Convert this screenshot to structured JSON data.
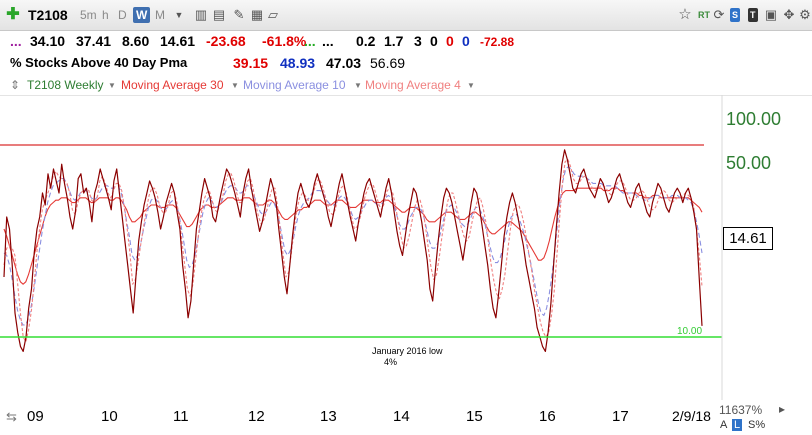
{
  "toolbar": {
    "symbol": "T2108",
    "timeframes": [
      "5m",
      "h",
      "D",
      "W",
      "M"
    ],
    "active_timeframe": "W",
    "right_badges": [
      "RT",
      "S",
      "T"
    ]
  },
  "stats_row": {
    "dots1": "...",
    "v1": "34.10",
    "v2": "37.41",
    "v3": "8.60",
    "v4": "14.61",
    "change": "-23.68",
    "change_pct": "-61.8%",
    "dots2": "...",
    "dots3": "...",
    "v5": "0.2",
    "v6": "1.7",
    "v7": "3",
    "v8": "0",
    "v9": "0",
    "v10": "0",
    "v11": "-72.88"
  },
  "indicator_row": {
    "name": "% Stocks Above 40 Day Pma",
    "ma_a": "39.15",
    "ma_b": "48.93",
    "ma_c": "47.03",
    "ma_d": "56.69"
  },
  "legend": {
    "series_main": "T2108 Weekly",
    "series_ma30": "Moving Average 30",
    "series_ma10": "Moving Average 10",
    "series_ma4": "Moving Average 4",
    "colors": {
      "main": "#2e7d32",
      "ma30": "#e53935",
      "ma10": "#8a8fe0",
      "ma4": "#f08080"
    }
  },
  "chart_data": {
    "type": "line",
    "title": "% Stocks Above 40 Day Pma",
    "x_ticks": [
      "09",
      "10",
      "11",
      "12",
      "13",
      "14",
      "15",
      "16",
      "17",
      "2/9/18"
    ],
    "y_ticks": [
      "100.00",
      "50.00"
    ],
    "ylim": [
      0,
      110
    ],
    "last_value": "14.61",
    "horizontal_lines": [
      {
        "value": 90,
        "color": "#e05050"
      },
      {
        "value": 10,
        "color": "#33dd33",
        "label": "10.00"
      }
    ],
    "annotation": {
      "text": "January 2016 low",
      "subtext": "4%"
    },
    "zoom": "11637%",
    "scale_label": "S%",
    "series": [
      {
        "name": "T2108 Weekly",
        "color": "#8b0000",
        "values": [
          35,
          60,
          55,
          40,
          20,
          12,
          6,
          4,
          10,
          22,
          30,
          45,
          55,
          60,
          70,
          65,
          78,
          72,
          80,
          75,
          70,
          82,
          74,
          68,
          60,
          55,
          62,
          76,
          78,
          70,
          72,
          66,
          58,
          70,
          74,
          80,
          76,
          72,
          68,
          63,
          75,
          80,
          70,
          60,
          50,
          40,
          30,
          20,
          35,
          50,
          58,
          65,
          70,
          75,
          72,
          68,
          62,
          55,
          60,
          66,
          70,
          74,
          70,
          62,
          55,
          40,
          30,
          18,
          25,
          40,
          55,
          62,
          70,
          76,
          72,
          68,
          60,
          58,
          64,
          70,
          75,
          80,
          78,
          74,
          70,
          65,
          60,
          70,
          76,
          80,
          72,
          66,
          60,
          54,
          58,
          64,
          70,
          76,
          72,
          66,
          55,
          45,
          35,
          28,
          40,
          52,
          62,
          70,
          74,
          70,
          66,
          64,
          68,
          74,
          78,
          74,
          70,
          66,
          60,
          56,
          62,
          68,
          74,
          78,
          72,
          66,
          60,
          55,
          50,
          58,
          64,
          70,
          74,
          76,
          72,
          68,
          64,
          60,
          66,
          72,
          76,
          70,
          62,
          54,
          48,
          44,
          52,
          60,
          66,
          72,
          70,
          64,
          58,
          50,
          42,
          30,
          25,
          38,
          50,
          60,
          68,
          72,
          70,
          66,
          60,
          54,
          48,
          42,
          50,
          58,
          66,
          72,
          70,
          64,
          56,
          48,
          40,
          30,
          22,
          18,
          28,
          40,
          52,
          60,
          66,
          70,
          66,
          60,
          54,
          48,
          40,
          34,
          28,
          22,
          14,
          10,
          6,
          4,
          12,
          24,
          40,
          56,
          70,
          82,
          88,
          84,
          78,
          72,
          70,
          74,
          78,
          80,
          76,
          72,
          70,
          68,
          72,
          76,
          74,
          70,
          66,
          68,
          72,
          76,
          78,
          74,
          70,
          66,
          64,
          68,
          72,
          74,
          70,
          66,
          62,
          60,
          66,
          70,
          74,
          72,
          68,
          64,
          62,
          66,
          70,
          72,
          70,
          66,
          70,
          72,
          68,
          62,
          55,
          34,
          14.61
        ]
      },
      {
        "name": "Moving Average 30",
        "color": "#e53935",
        "values": [
          55,
          52,
          48,
          44,
          40,
          36,
          33,
          32,
          33,
          36,
          40,
          44,
          48,
          52,
          56,
          60,
          63,
          65,
          66,
          67,
          67,
          68,
          68,
          68,
          67,
          66,
          66,
          67,
          68,
          68,
          68,
          67,
          66,
          66,
          67,
          68,
          68,
          68,
          68,
          67,
          67,
          68,
          68,
          67,
          65,
          63,
          60,
          58,
          58,
          59,
          60,
          62,
          63,
          64,
          65,
          65,
          65,
          64,
          64,
          64,
          65,
          65,
          65,
          64,
          62,
          60,
          58,
          56,
          56,
          57,
          59,
          61,
          63,
          64,
          65,
          65,
          64,
          64,
          64,
          65,
          66,
          67,
          68,
          68,
          68,
          67,
          67,
          67,
          68,
          68,
          68,
          67,
          66,
          65,
          65,
          65,
          66,
          67,
          67,
          66,
          64,
          62,
          60,
          59,
          59,
          60,
          61,
          62,
          63,
          63,
          64,
          64,
          65,
          66,
          67,
          67,
          67,
          66,
          65,
          65,
          65,
          66,
          67,
          67,
          67,
          66,
          65,
          64,
          64,
          64,
          65,
          66,
          67,
          67,
          67,
          67,
          66,
          66,
          66,
          67,
          67,
          67,
          66,
          65,
          64,
          63,
          62,
          62,
          63,
          64,
          64,
          64,
          63,
          62,
          61,
          59,
          58,
          58,
          58,
          59,
          60,
          61,
          62,
          62,
          62,
          61,
          60,
          59,
          59,
          59,
          60,
          61,
          62,
          62,
          61,
          60,
          58,
          56,
          54,
          53,
          53,
          54,
          55,
          56,
          57,
          58,
          58,
          57,
          56,
          55,
          54,
          52,
          50,
          48,
          46,
          44,
          42,
          42,
          43,
          46,
          50,
          55,
          60,
          64,
          68,
          70,
          71,
          71,
          71,
          71,
          72,
          72,
          72,
          72,
          72,
          72,
          72,
          72,
          72,
          72,
          71,
          71,
          71,
          72,
          72,
          72,
          71,
          71,
          70,
          70,
          70,
          70,
          70,
          69,
          69,
          68,
          68,
          68,
          69,
          69,
          69,
          68,
          68,
          68,
          68,
          68,
          68,
          68,
          68,
          68,
          68,
          68,
          67,
          66,
          65,
          64,
          62
        ]
      },
      {
        "name": "Moving Average 10",
        "color": "#8a8fe0",
        "values": [
          45,
          44,
          40,
          34,
          27,
          21,
          17,
          15,
          15,
          18,
          23,
          30,
          38,
          46,
          54,
          60,
          66,
          70,
          73,
          74,
          75,
          76,
          76,
          74,
          71,
          68,
          67,
          68,
          70,
          71,
          71,
          70,
          68,
          67,
          68,
          70,
          72,
          73,
          73,
          72,
          72,
          73,
          73,
          70,
          65,
          58,
          52,
          44,
          42,
          44,
          48,
          54,
          59,
          64,
          67,
          68,
          67,
          65,
          63,
          63,
          64,
          66,
          67,
          66,
          62,
          56,
          49,
          42,
          39,
          40,
          44,
          50,
          56,
          62,
          66,
          68,
          67,
          65,
          64,
          65,
          67,
          70,
          72,
          73,
          73,
          72,
          70,
          70,
          71,
          73,
          73,
          71,
          68,
          65,
          62,
          61,
          62,
          64,
          66,
          66,
          63,
          58,
          52,
          46,
          44,
          46,
          50,
          56,
          61,
          64,
          66,
          67,
          68,
          70,
          71,
          71,
          71,
          70,
          68,
          66,
          65,
          65,
          66,
          68,
          69,
          68,
          66,
          63,
          60,
          59,
          60,
          62,
          64,
          66,
          67,
          67,
          66,
          65,
          65,
          66,
          68,
          69,
          68,
          65,
          61,
          57,
          55,
          55,
          57,
          60,
          62,
          64,
          64,
          63,
          60,
          55,
          50,
          47,
          47,
          49,
          53,
          58,
          62,
          64,
          65,
          64,
          62,
          59,
          57,
          56,
          57,
          59,
          62,
          64,
          64,
          62,
          59,
          54,
          49,
          44,
          41,
          41,
          43,
          47,
          52,
          56,
          60,
          61,
          61,
          59,
          56,
          52,
          47,
          42,
          36,
          30,
          24,
          20,
          19,
          22,
          28,
          36,
          46,
          57,
          67,
          75,
          80,
          81,
          80,
          78,
          77,
          77,
          77,
          77,
          76,
          75,
          74,
          74,
          74,
          74,
          73,
          73,
          73,
          73,
          73,
          72,
          71,
          70,
          70,
          70,
          70,
          70,
          69,
          68,
          68,
          67,
          67,
          68,
          68,
          69,
          69,
          68,
          68,
          68,
          68,
          69,
          69,
          69,
          68,
          68,
          68,
          67,
          66,
          63,
          58,
          52,
          45
        ]
      },
      {
        "name": "Moving Average 4",
        "color": "#f08080",
        "values": [
          40,
          47,
          48,
          47,
          44,
          32,
          20,
          10,
          8,
          13,
          21,
          32,
          45,
          55,
          63,
          67,
          70,
          73,
          77,
          79,
          77,
          76,
          75,
          74,
          70,
          63,
          61,
          66,
          70,
          71,
          72,
          71,
          67,
          66,
          68,
          75,
          77,
          74,
          70,
          68,
          71,
          74,
          74,
          71,
          64,
          55,
          45,
          32,
          34,
          41,
          49,
          56,
          63,
          69,
          72,
          72,
          69,
          64,
          62,
          62,
          65,
          70,
          71,
          67,
          60,
          50,
          40,
          30,
          27,
          32,
          42,
          52,
          61,
          67,
          70,
          71,
          67,
          63,
          62,
          66,
          69,
          75,
          78,
          78,
          75,
          70,
          66,
          66,
          70,
          75,
          76,
          72,
          65,
          60,
          57,
          59,
          63,
          68,
          72,
          72,
          64,
          54,
          44,
          35,
          37,
          45,
          55,
          63,
          68,
          70,
          69,
          67,
          67,
          70,
          74,
          76,
          74,
          70,
          66,
          62,
          61,
          63,
          68,
          72,
          73,
          70,
          65,
          60,
          55,
          56,
          59,
          64,
          69,
          72,
          74,
          73,
          69,
          65,
          63,
          66,
          71,
          72,
          70,
          65,
          58,
          52,
          47,
          48,
          52,
          58,
          64,
          67,
          67,
          63,
          56,
          47,
          39,
          34,
          36,
          43,
          52,
          59,
          66,
          70,
          70,
          66,
          61,
          56,
          52,
          50,
          52,
          58,
          63,
          67,
          68,
          64,
          58,
          49,
          40,
          33,
          28,
          26,
          30,
          36,
          46,
          55,
          62,
          65,
          65,
          62,
          57,
          50,
          43,
          36,
          28,
          22,
          16,
          12,
          10,
          12,
          19,
          29,
          44,
          60,
          74,
          83,
          84,
          81,
          76,
          74,
          74,
          76,
          77,
          76,
          74,
          72,
          71,
          72,
          73,
          73,
          72,
          70,
          69,
          71,
          74,
          75,
          75,
          72,
          69,
          67,
          67,
          68,
          70,
          71,
          70,
          67,
          64,
          63,
          64,
          67,
          70,
          71,
          70,
          67,
          66,
          67,
          68,
          68,
          69,
          70,
          69,
          68,
          64,
          55,
          44,
          31
        ]
      }
    ]
  }
}
